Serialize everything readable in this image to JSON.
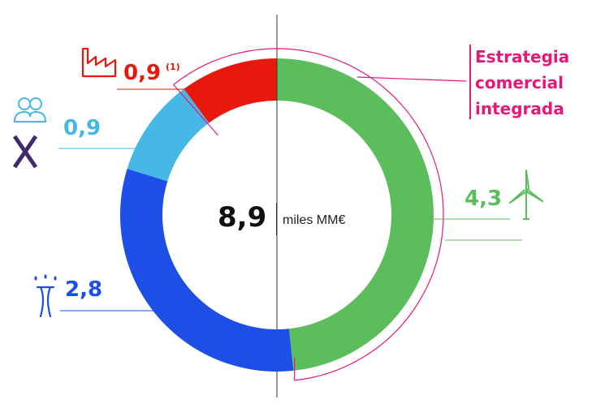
{
  "chart_data": {
    "type": "donut",
    "title": "",
    "center": {
      "value": "8,9",
      "unit": "miles MM€"
    },
    "total": 8.9,
    "slices": [
      {
        "label_text": "4,3",
        "value": 4.3,
        "color": "#5cbd5c",
        "icon": "wind-turbine-icon",
        "label_color": "#5cbd5c"
      },
      {
        "label_text": "2,8",
        "value": 2.8,
        "color": "#1d4ee6",
        "icon": "power-pylon-icon",
        "label_color": "#1d4ee6"
      },
      {
        "label_text": "0,9",
        "value": 0.9,
        "color": "#45b8e6",
        "icon": "users-icon",
        "label_color": "#45b8e6"
      },
      {
        "label_text": "0,9",
        "label_note": "(1)",
        "value": 0.9,
        "color": "#e8190c",
        "icon": "factory-icon",
        "label_color": "#e8190c"
      }
    ],
    "annotation": {
      "lines": [
        "Estrategia",
        "comercial",
        "integrada"
      ],
      "color": "#e5187a"
    }
  }
}
